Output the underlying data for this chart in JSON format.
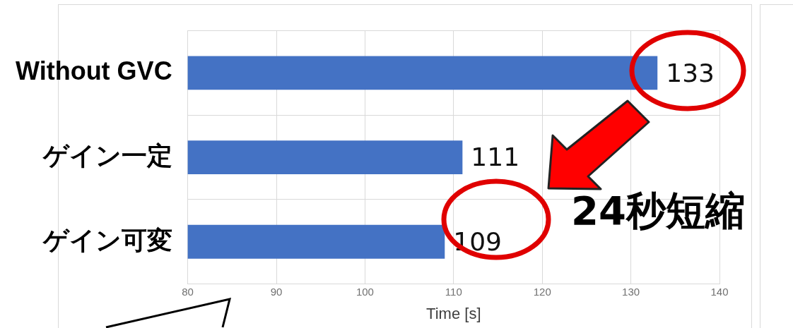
{
  "chart_data": {
    "type": "bar",
    "orientation": "horizontal",
    "categories": [
      "Without GVC",
      "ゲイン一定",
      "ゲイン可変"
    ],
    "values": [
      133,
      111,
      109
    ],
    "color": "#4472c4",
    "xlim": [
      80,
      140
    ],
    "xticks": [
      80,
      90,
      100,
      110,
      120,
      130,
      140
    ],
    "xlabel": "Time [s]",
    "grid": true,
    "data_labels": true,
    "annotations": [
      "24秒短縮"
    ]
  }
}
